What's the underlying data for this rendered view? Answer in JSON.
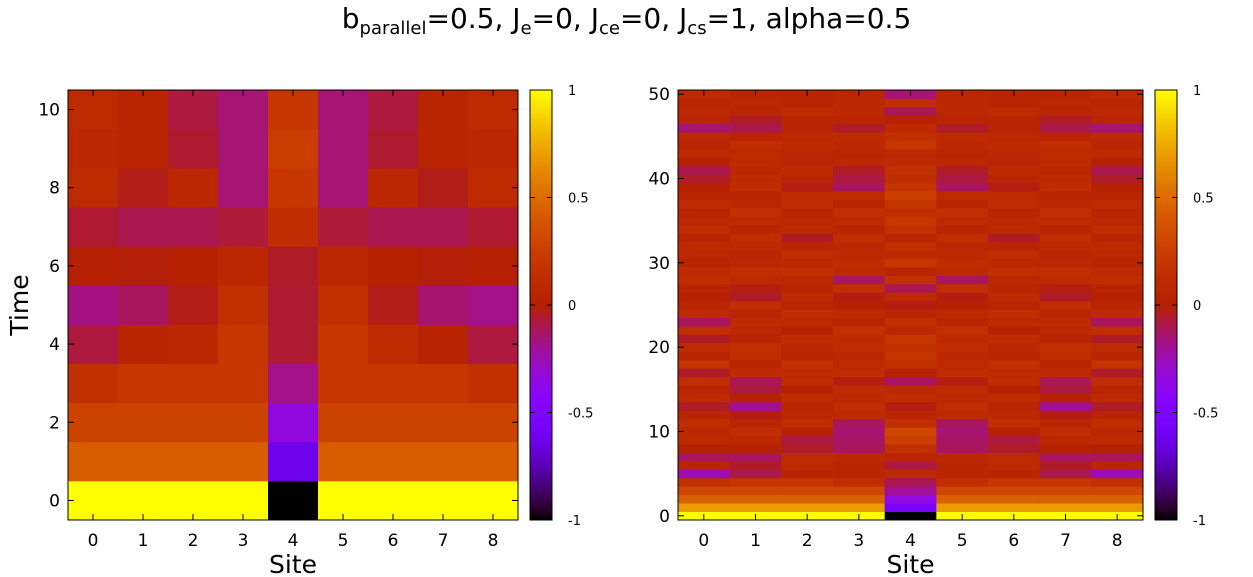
{
  "title": {
    "b": "b",
    "b_sub": "parallel",
    "b_val": "=0.5, ",
    "je": "J",
    "je_sub": "e",
    "je_val": "=0, ",
    "jce": "J",
    "jce_sub": "ce",
    "jce_val": "=0, ",
    "jcs": "J",
    "jcs_sub": "cs",
    "jcs_val": "=1, alpha=0.5"
  },
  "colors": {
    "background": "#ffffff",
    "frame": "#000000",
    "colormap": "gnuplot"
  },
  "chart_data": [
    {
      "type": "heatmap",
      "title": "",
      "xlabel": "Site",
      "ylabel": "Time",
      "x": [
        0,
        1,
        2,
        3,
        4,
        5,
        6,
        7,
        8
      ],
      "y": [
        0,
        1,
        2,
        3,
        4,
        5,
        6,
        7,
        8,
        9,
        10
      ],
      "xticks": [
        "0",
        "1",
        "2",
        "3",
        "4",
        "5",
        "6",
        "7",
        "8"
      ],
      "yticks": [
        "0",
        "2",
        "4",
        "6",
        "8",
        "10"
      ],
      "xlim": [
        -0.5,
        8.5
      ],
      "ylim": [
        -0.5,
        10.5
      ],
      "colorbar": {
        "ticks": [
          "-1",
          "-0.5",
          "0",
          "0.5",
          "1"
        ],
        "range": [
          -1,
          1
        ]
      },
      "values": [
        [
          1,
          1,
          1,
          1,
          -1,
          1,
          1,
          1,
          1
        ],
        [
          0.43,
          0.43,
          0.43,
          0.43,
          -0.62,
          0.43,
          0.43,
          0.43,
          0.43
        ],
        [
          0.28,
          0.28,
          0.28,
          0.28,
          -0.34,
          0.28,
          0.28,
          0.28,
          0.28
        ],
        [
          0.15,
          0.2,
          0.2,
          0.2,
          -0.18,
          0.2,
          0.2,
          0.2,
          0.15
        ],
        [
          -0.08,
          0.05,
          0.08,
          0.2,
          -0.06,
          0.2,
          0.1,
          0.03,
          -0.08
        ],
        [
          -0.17,
          -0.12,
          -0.03,
          0.15,
          -0.06,
          0.15,
          -0.03,
          -0.14,
          -0.18
        ],
        [
          0.0,
          -0.01,
          0.02,
          0.08,
          -0.05,
          0.08,
          0.02,
          -0.01,
          0.0
        ],
        [
          -0.06,
          -0.1,
          -0.1,
          -0.07,
          0.12,
          -0.07,
          -0.1,
          -0.1,
          -0.06
        ],
        [
          0.1,
          -0.03,
          0.08,
          -0.15,
          0.2,
          -0.15,
          0.08,
          -0.03,
          0.1
        ],
        [
          0.08,
          0.05,
          -0.06,
          -0.15,
          0.24,
          -0.15,
          -0.06,
          0.05,
          0.08
        ],
        [
          0.1,
          0.05,
          -0.08,
          -0.15,
          0.2,
          -0.15,
          -0.08,
          0.05,
          0.1
        ]
      ]
    },
    {
      "type": "heatmap",
      "title": "",
      "xlabel": "Site",
      "ylabel": "",
      "x": [
        0,
        1,
        2,
        3,
        4,
        5,
        6,
        7,
        8
      ],
      "y": [
        0,
        1,
        2,
        3,
        4,
        5,
        6,
        7,
        8,
        9,
        10,
        11,
        12,
        13,
        14,
        15,
        16,
        17,
        18,
        19,
        20,
        21,
        22,
        23,
        24,
        25,
        26,
        27,
        28,
        29,
        30,
        31,
        32,
        33,
        34,
        35,
        36,
        37,
        38,
        39,
        40,
        41,
        42,
        43,
        44,
        45,
        46,
        47,
        48,
        49,
        50
      ],
      "xticks": [
        "0",
        "1",
        "2",
        "3",
        "4",
        "5",
        "6",
        "7",
        "8"
      ],
      "yticks": [
        "0",
        "10",
        "20",
        "30",
        "40",
        "50"
      ],
      "xlim": [
        -0.5,
        8.5
      ],
      "ylim": [
        -0.5,
        50.5
      ],
      "colorbar": {
        "ticks": [
          "-1",
          "-0.5",
          "0",
          "0.5",
          "1"
        ],
        "range": [
          -1,
          1
        ]
      },
      "values": [
        [
          1,
          1,
          1,
          1,
          -1,
          1,
          1,
          1,
          1
        ],
        [
          0.7,
          0.7,
          0.7,
          0.7,
          -0.55,
          0.7,
          0.7,
          0.7,
          0.7
        ],
        [
          0.45,
          0.45,
          0.45,
          0.45,
          -0.35,
          0.45,
          0.45,
          0.45,
          0.45
        ],
        [
          0.3,
          0.3,
          0.3,
          0.3,
          -0.2,
          0.3,
          0.3,
          0.3,
          0.3
        ],
        [
          0.15,
          0.2,
          0.2,
          0.12,
          -0.1,
          0.12,
          0.2,
          0.2,
          0.15
        ],
        [
          -0.25,
          -0.1,
          0.05,
          0.05,
          0.1,
          0.05,
          0.05,
          -0.1,
          -0.25
        ],
        [
          0.05,
          -0.05,
          0.1,
          0.05,
          -0.08,
          0.05,
          0.1,
          -0.05,
          0.05
        ],
        [
          -0.12,
          -0.12,
          0.1,
          0.08,
          0.05,
          0.08,
          0.1,
          -0.12,
          -0.12
        ],
        [
          0.0,
          0.02,
          -0.05,
          -0.12,
          0.15,
          -0.12,
          -0.05,
          0.02,
          0.0
        ],
        [
          0.1,
          0.08,
          -0.08,
          -0.13,
          0.25,
          -0.13,
          -0.08,
          0.08,
          0.1
        ],
        [
          0.08,
          0.12,
          0.02,
          -0.15,
          0.3,
          -0.15,
          0.02,
          0.12,
          0.08
        ],
        [
          0.12,
          0.05,
          0.12,
          -0.12,
          0.15,
          -0.12,
          0.12,
          0.05,
          0.12
        ],
        [
          0.05,
          -0.02,
          0.08,
          0.1,
          0.05,
          0.1,
          0.08,
          -0.02,
          0.05
        ],
        [
          -0.05,
          -0.2,
          0.05,
          0.12,
          -0.02,
          0.12,
          0.05,
          -0.2,
          -0.05
        ],
        [
          0.1,
          0.02,
          0.1,
          0.08,
          0.12,
          0.08,
          0.1,
          0.02,
          0.1
        ],
        [
          0.05,
          -0.08,
          0.02,
          0.1,
          0.08,
          0.1,
          0.02,
          -0.08,
          0.05
        ],
        [
          0.12,
          -0.1,
          0.12,
          -0.02,
          -0.12,
          -0.02,
          0.12,
          -0.1,
          0.12
        ],
        [
          -0.05,
          0.1,
          0.1,
          0.12,
          0.02,
          0.12,
          0.1,
          0.1,
          -0.05
        ],
        [
          0.18,
          0.05,
          0.15,
          0.1,
          0.15,
          0.1,
          0.15,
          0.05,
          0.18
        ],
        [
          0.05,
          0.12,
          0.05,
          0.08,
          0.18,
          0.08,
          0.05,
          0.12,
          0.05
        ],
        [
          0.1,
          0.15,
          0.08,
          0.12,
          0.15,
          0.12,
          0.08,
          0.15,
          0.1
        ],
        [
          -0.05,
          0.05,
          0.12,
          0.1,
          0.2,
          0.1,
          0.12,
          0.05,
          -0.05
        ],
        [
          0.12,
          0.08,
          0.02,
          0.15,
          0.08,
          0.15,
          0.02,
          0.08,
          0.12
        ],
        [
          -0.12,
          0.1,
          0.1,
          0.05,
          0.15,
          0.05,
          0.1,
          0.1,
          -0.12
        ],
        [
          0.1,
          0.05,
          0.12,
          0.1,
          0.05,
          0.1,
          0.12,
          0.05,
          0.1
        ],
        [
          0.05,
          0.12,
          0.05,
          0.02,
          -0.02,
          0.02,
          0.05,
          0.12,
          0.05
        ],
        [
          0.02,
          -0.05,
          0.1,
          -0.02,
          0.1,
          -0.02,
          0.1,
          -0.05,
          0.02
        ],
        [
          0.05,
          -0.02,
          0.05,
          0.12,
          -0.1,
          0.12,
          0.05,
          -0.02,
          0.05
        ],
        [
          0.12,
          0.1,
          0.08,
          -0.12,
          0.15,
          -0.12,
          0.08,
          0.1,
          0.12
        ],
        [
          0.1,
          0.12,
          0.15,
          0.1,
          0.05,
          0.1,
          0.15,
          0.12,
          0.1
        ],
        [
          0.05,
          0.08,
          0.1,
          0.12,
          0.2,
          0.12,
          0.1,
          0.08,
          0.05
        ],
        [
          0.08,
          0.05,
          0.12,
          0.1,
          0.1,
          0.1,
          0.12,
          0.05,
          0.08
        ],
        [
          0.1,
          0.1,
          0.05,
          0.08,
          0.15,
          0.08,
          0.05,
          0.1,
          0.1
        ],
        [
          0.05,
          0.12,
          -0.05,
          0.12,
          0.05,
          0.12,
          -0.05,
          0.12,
          0.05
        ],
        [
          0.12,
          0.05,
          0.1,
          0.05,
          0.15,
          0.05,
          0.1,
          0.05,
          0.12
        ],
        [
          0.08,
          0.1,
          0.08,
          0.1,
          0.2,
          0.1,
          0.08,
          0.1,
          0.08
        ],
        [
          0.05,
          0.15,
          0.05,
          0.15,
          0.12,
          0.15,
          0.05,
          0.15,
          0.05
        ],
        [
          0.1,
          0.08,
          0.12,
          0.05,
          0.18,
          0.05,
          0.12,
          0.08,
          0.1
        ],
        [
          0.05,
          0.05,
          0.1,
          0.1,
          0.25,
          0.1,
          0.1,
          0.05,
          0.05
        ],
        [
          0.02,
          0.12,
          -0.02,
          -0.12,
          0.18,
          -0.12,
          -0.02,
          0.12,
          0.02
        ],
        [
          -0.05,
          0.1,
          0.05,
          -0.08,
          0.12,
          -0.08,
          0.05,
          0.1,
          -0.05
        ],
        [
          -0.1,
          0.08,
          0.1,
          -0.05,
          0.15,
          -0.05,
          0.1,
          0.08,
          -0.1
        ],
        [
          0.02,
          0.1,
          0.05,
          0.08,
          0.1,
          0.08,
          0.05,
          0.1,
          0.02
        ],
        [
          0.1,
          0.1,
          0.08,
          0.05,
          0.08,
          0.05,
          0.08,
          0.1,
          0.1
        ],
        [
          0.05,
          0.12,
          0.1,
          0.08,
          0.2,
          0.08,
          0.1,
          0.12,
          0.05
        ],
        [
          0.08,
          0.05,
          0.08,
          0.1,
          0.15,
          0.1,
          0.08,
          0.05,
          0.08
        ],
        [
          -0.15,
          -0.1,
          0.05,
          -0.05,
          0.1,
          -0.05,
          0.05,
          -0.1,
          -0.15
        ],
        [
          0.05,
          -0.05,
          0.05,
          0.05,
          0.02,
          0.05,
          0.05,
          -0.05,
          0.05
        ],
        [
          0.08,
          0.05,
          0.1,
          0.08,
          -0.1,
          0.08,
          0.1,
          0.05,
          0.08
        ],
        [
          0.05,
          0.08,
          0.05,
          0.08,
          0.12,
          0.08,
          0.05,
          0.08,
          0.05
        ],
        [
          0.1,
          0.05,
          0.05,
          0.08,
          -0.15,
          0.08,
          0.05,
          0.05,
          0.1
        ]
      ]
    }
  ]
}
